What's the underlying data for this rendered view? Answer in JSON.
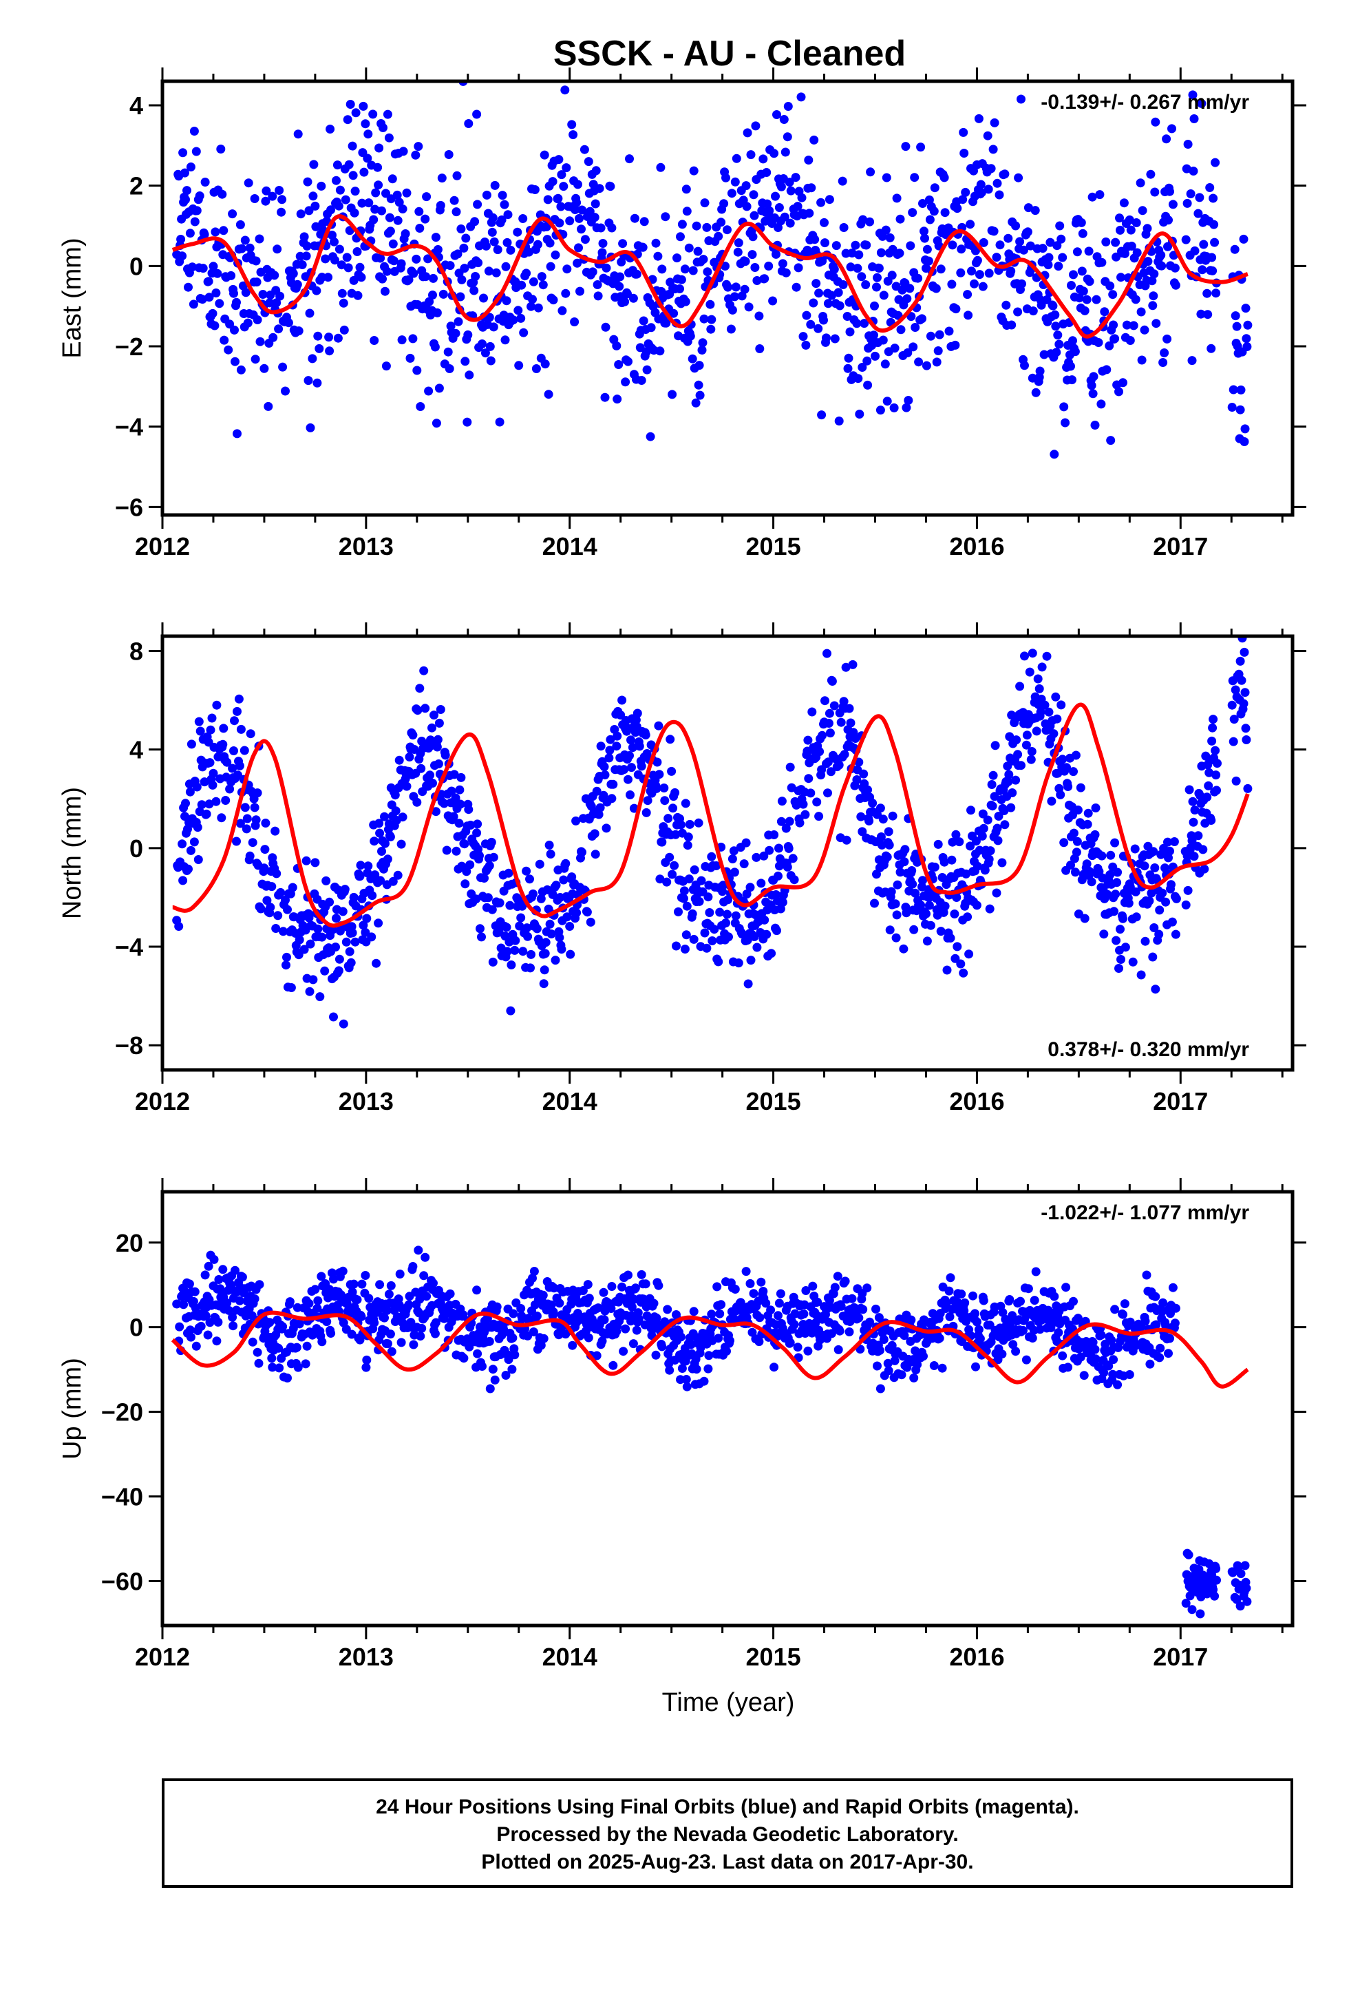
{
  "page": {
    "footer_lines": [
      "24 Hour Positions Using Final Orbits (blue) and Rapid Orbits (magenta).",
      "Processed by the Nevada Geodetic Laboratory.",
      "Plotted on 2025-Aug-23. Last data on 2017-Apr-30."
    ]
  },
  "chart_data": [
    {
      "type": "scatter",
      "title": "SSCK  - AU - Cleaned",
      "ylabel": "East (mm)",
      "xlabel": "",
      "xlim": [
        2012.0,
        2017.55
      ],
      "ylim": [
        -6.2,
        4.6
      ],
      "yticks": [
        4,
        2,
        0,
        -2,
        -4,
        -6
      ],
      "xticks": [
        2012,
        2013,
        2014,
        2015,
        2016,
        2017
      ],
      "rate": "-0.139+/- 0.267 mm/yr",
      "rate_position": "top-right",
      "grid": false,
      "point_color": "#0000ff",
      "fit_color": "#ff0000",
      "gaps": [
        [
          2016.98,
          2017.02
        ],
        [
          2017.18,
          2017.25
        ]
      ],
      "model": {
        "mean": 0.0,
        "slope": -0.139,
        "annual_sin": -0.1,
        "annual_cos": 1.05,
        "semi_sin": 0.2,
        "semi_cos": 0.35,
        "noise": 1.4,
        "seed": 11
      },
      "fit_curve": {
        "x": [
          2012.05,
          2012.15,
          2012.3,
          2012.45,
          2012.55,
          2012.7,
          2012.85,
          2013.0,
          2013.1,
          2013.25,
          2013.35,
          2013.5,
          2013.65,
          2013.85,
          2014.0,
          2014.15,
          2014.3,
          2014.45,
          2014.55,
          2014.65,
          2014.85,
          2015.0,
          2015.15,
          2015.3,
          2015.45,
          2015.55,
          2015.7,
          2015.9,
          2016.1,
          2016.25,
          2016.45,
          2016.55,
          2016.7,
          2016.9,
          2017.05,
          2017.2,
          2017.33
        ],
        "y": [
          0.4,
          0.55,
          0.6,
          -0.7,
          -1.15,
          -0.6,
          1.2,
          0.6,
          0.3,
          0.5,
          0.1,
          -1.3,
          -0.8,
          1.15,
          0.4,
          0.1,
          0.3,
          -1.0,
          -1.5,
          -0.9,
          1.0,
          0.5,
          0.2,
          0.2,
          -1.2,
          -1.6,
          -0.9,
          0.85,
          0.0,
          0.1,
          -1.2,
          -1.75,
          -0.9,
          0.8,
          -0.2,
          -0.4,
          -0.2
        ]
      }
    },
    {
      "type": "scatter",
      "title": "",
      "ylabel": "North (mm)",
      "xlabel": "",
      "xlim": [
        2012.0,
        2017.55
      ],
      "ylim": [
        -9.0,
        8.6
      ],
      "yticks": [
        8,
        4,
        0,
        -4,
        -8
      ],
      "xticks": [
        2012,
        2013,
        2014,
        2015,
        2016,
        2017
      ],
      "rate": "0.378+/- 0.320 mm/yr",
      "rate_position": "bottom-right",
      "grid": false,
      "point_color": "#0000ff",
      "fit_color": "#ff0000",
      "gaps": [
        [
          2016.98,
          2017.02
        ],
        [
          2017.18,
          2017.25
        ]
      ],
      "model": {
        "mean": 0.0,
        "slope": 0.378,
        "annual_sin": 3.6,
        "annual_cos": -1.0,
        "semi_sin": -0.5,
        "semi_cos": -0.9,
        "noise": 1.3,
        "seed": 23
      },
      "fit_curve": {
        "x": [
          2012.05,
          2012.15,
          2012.3,
          2012.45,
          2012.55,
          2012.7,
          2012.8,
          2012.9,
          2013.05,
          2013.2,
          2013.35,
          2013.5,
          2013.6,
          2013.75,
          2013.85,
          2013.95,
          2014.1,
          2014.25,
          2014.4,
          2014.5,
          2014.6,
          2014.75,
          2014.85,
          2015.0,
          2015.2,
          2015.35,
          2015.5,
          2015.6,
          2015.75,
          2015.85,
          2016.0,
          2016.2,
          2016.35,
          2016.5,
          2016.6,
          2016.75,
          2016.85,
          2017.0,
          2017.15,
          2017.25,
          2017.33
        ],
        "y": [
          -2.4,
          -2.4,
          -0.5,
          3.8,
          3.7,
          -1.5,
          -3.0,
          -3.0,
          -2.2,
          -1.5,
          2.3,
          4.6,
          3.0,
          -1.5,
          -2.7,
          -2.5,
          -1.8,
          -1.0,
          3.5,
          5.1,
          4.0,
          -0.8,
          -2.3,
          -1.6,
          -1.2,
          2.5,
          5.3,
          3.9,
          -1.0,
          -1.8,
          -1.5,
          -0.9,
          3.0,
          5.8,
          4.0,
          -0.5,
          -1.6,
          -0.8,
          -0.5,
          0.5,
          2.2
        ]
      }
    },
    {
      "type": "scatter",
      "title": "",
      "ylabel": "Up (mm)",
      "xlabel": "Time (year)",
      "xlim": [
        2012.0,
        2017.55
      ],
      "ylim": [
        -70.5,
        32.0
      ],
      "yticks": [
        20,
        0,
        -20,
        -40,
        -60
      ],
      "xticks": [
        2012,
        2013,
        2014,
        2015,
        2016,
        2017
      ],
      "rate": "-1.022+/- 1.077 mm/yr",
      "rate_position": "top-right",
      "grid": false,
      "point_color": "#0000ff",
      "fit_color": "#ff0000",
      "gaps": [
        [
          2016.98,
          2017.02
        ],
        [
          2017.18,
          2017.25
        ]
      ],
      "outlier_cluster": {
        "x_ranges": [
          [
            2017.02,
            2017.18
          ],
          [
            2017.25,
            2017.33
          ]
        ],
        "y_center": -60.0,
        "y_spread": 3.5
      },
      "model": {
        "mean": 1.0,
        "slope": -1.022,
        "annual_sin": 2.0,
        "annual_cos": 2.0,
        "semi_sin": -3.0,
        "semi_cos": -1.0,
        "noise": 4.2,
        "seed": 37
      },
      "fit_curve": {
        "x": [
          2012.05,
          2012.2,
          2012.35,
          2012.5,
          2012.7,
          2012.9,
          2013.05,
          2013.2,
          2013.35,
          2013.55,
          2013.75,
          2013.95,
          2014.05,
          2014.2,
          2014.35,
          2014.55,
          2014.75,
          2014.9,
          2015.05,
          2015.2,
          2015.35,
          2015.55,
          2015.75,
          2015.9,
          2016.05,
          2016.2,
          2016.35,
          2016.55,
          2016.75,
          2016.95,
          2017.1,
          2017.2,
          2017.33
        ],
        "y": [
          -3.0,
          -9.0,
          -6.0,
          3.0,
          2.0,
          2.5,
          -4.0,
          -10.0,
          -6.0,
          3.0,
          0.5,
          1.5,
          -4.0,
          -11.0,
          -6.0,
          2.0,
          0.5,
          0.5,
          -5.0,
          -12.0,
          -7.0,
          1.0,
          -1.0,
          -1.0,
          -7.0,
          -13.0,
          -7.0,
          0.5,
          -1.5,
          -1.0,
          -8.0,
          -14.0,
          -10.0
        ]
      }
    }
  ]
}
